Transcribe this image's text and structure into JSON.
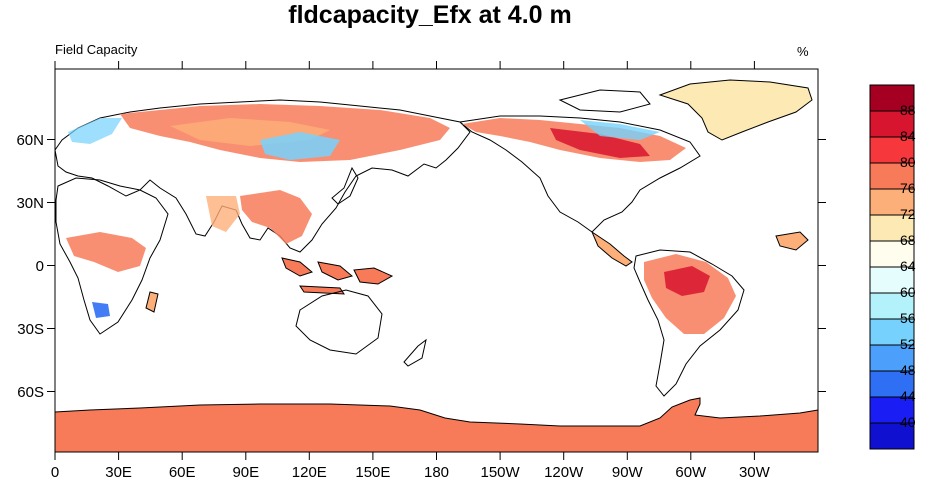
{
  "title": "fldcapacity_Efx at 4.0 m",
  "left_label": "Field Capacity",
  "right_label": "%",
  "map": {
    "projection": "cylindrical-equidistant",
    "center_longitude": 180,
    "lon_ticks": [
      "0",
      "30E",
      "60E",
      "90E",
      "120E",
      "150E",
      "180",
      "150W",
      "120W",
      "90W",
      "60W",
      "30W"
    ],
    "lat_ticks": [
      "60N",
      "30N",
      "0",
      "30S",
      "60S"
    ]
  },
  "colorbar": {
    "labels": [
      "88",
      "84",
      "80",
      "76",
      "72",
      "68",
      "64",
      "60",
      "56",
      "52",
      "48",
      "44",
      "40"
    ],
    "colors": [
      "#a50021",
      "#d8152f",
      "#f6383d",
      "#f87b59",
      "#fcaf78",
      "#fde9b3",
      "#fffdee",
      "#e6fdfd",
      "#b4f2fb",
      "#76d2fd",
      "#4c9ffb",
      "#2f6ff4",
      "#1a1ef5",
      "#1010d0"
    ]
  },
  "legend_colors": {
    "land_fill": "#f87b59",
    "greenland_fill": "#fde9b3",
    "coastline": "#000000"
  }
}
